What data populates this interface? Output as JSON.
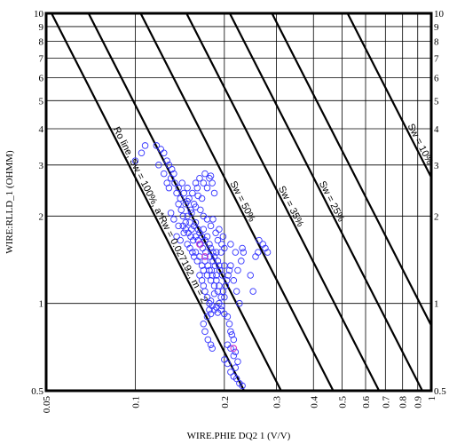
{
  "chart_data": {
    "type": "scatter",
    "xlabel": "WIRE.PHIE DQ2 1 (V/V)",
    "ylabel": "WIRE:RLLD_1 (OHMM)",
    "x_scale": "log",
    "y_scale": "log",
    "xlim": [
      0.05,
      1
    ],
    "ylim": [
      0.5,
      10
    ],
    "x_ticks": [
      "0.05",
      "0.1",
      "0.2",
      "0.3",
      "0.4",
      "0.5",
      "0.6",
      "0.7",
      "0.8",
      "0.9",
      "1"
    ],
    "y_ticks": [
      "0.5",
      "1",
      "2",
      "3",
      "4",
      "5",
      "6",
      "7",
      "8",
      "9",
      "10"
    ],
    "grid": true,
    "marker": "open-circle",
    "colors": {
      "points": "#3333ff",
      "highlight_points": "#cc33cc",
      "lines": "#000000",
      "grid": "#000000"
    },
    "pickett_lines": [
      {
        "label": "Ro line, Sw = 100%, a*Rw = 0.027192, m = 2",
        "Sw": 1.0
      },
      {
        "label": "",
        "Sw": 0.75
      },
      {
        "label": "Sw = 50%",
        "Sw": 0.5
      },
      {
        "label": "Sw = 35%",
        "Sw": 0.35
      },
      {
        "label": "Sw = 25%",
        "Sw": 0.25
      },
      {
        "label": "",
        "Sw": 0.18
      },
      {
        "label": "Sw = 10%",
        "Sw": 0.1
      }
    ],
    "points": [
      [
        0.1,
        3.1
      ],
      [
        0.105,
        3.3
      ],
      [
        0.108,
        3.5
      ],
      [
        0.118,
        3.5
      ],
      [
        0.122,
        3.4
      ],
      [
        0.125,
        3.3
      ],
      [
        0.128,
        3.1
      ],
      [
        0.13,
        3.0
      ],
      [
        0.133,
        2.9
      ],
      [
        0.135,
        2.8
      ],
      [
        0.12,
        3.0
      ],
      [
        0.125,
        2.8
      ],
      [
        0.128,
        2.6
      ],
      [
        0.13,
        2.5
      ],
      [
        0.132,
        2.7
      ],
      [
        0.136,
        2.6
      ],
      [
        0.138,
        2.4
      ],
      [
        0.14,
        2.5
      ],
      [
        0.142,
        2.3
      ],
      [
        0.144,
        2.6
      ],
      [
        0.146,
        2.4
      ],
      [
        0.148,
        2.2
      ],
      [
        0.15,
        2.5
      ],
      [
        0.152,
        2.3
      ],
      [
        0.154,
        2.1
      ],
      [
        0.156,
        2.4
      ],
      [
        0.158,
        2.2
      ],
      [
        0.16,
        2.6
      ],
      [
        0.162,
        2.5
      ],
      [
        0.165,
        2.7
      ],
      [
        0.168,
        2.3
      ],
      [
        0.17,
        2.6
      ],
      [
        0.172,
        2.8
      ],
      [
        0.175,
        2.5
      ],
      [
        0.178,
        2.7
      ],
      [
        0.18,
        2.75
      ],
      [
        0.182,
        2.6
      ],
      [
        0.185,
        2.4
      ],
      [
        0.14,
        2.2
      ],
      [
        0.143,
        2.1
      ],
      [
        0.145,
        2.0
      ],
      [
        0.148,
        1.9
      ],
      [
        0.15,
        2.0
      ],
      [
        0.153,
        1.9
      ],
      [
        0.155,
        1.8
      ],
      [
        0.158,
        1.85
      ],
      [
        0.16,
        1.9
      ],
      [
        0.163,
        1.8
      ],
      [
        0.165,
        1.75
      ],
      [
        0.168,
        1.7
      ],
      [
        0.17,
        1.8
      ],
      [
        0.172,
        1.65
      ],
      [
        0.175,
        1.7
      ],
      [
        0.178,
        1.6
      ],
      [
        0.18,
        1.55
      ],
      [
        0.183,
        1.5
      ],
      [
        0.185,
        1.45
      ],
      [
        0.188,
        1.5
      ],
      [
        0.19,
        1.4
      ],
      [
        0.192,
        1.35
      ],
      [
        0.195,
        1.5
      ],
      [
        0.15,
        1.6
      ],
      [
        0.153,
        1.55
      ],
      [
        0.156,
        1.5
      ],
      [
        0.158,
        1.45
      ],
      [
        0.16,
        1.5
      ],
      [
        0.162,
        1.4
      ],
      [
        0.165,
        1.45
      ],
      [
        0.168,
        1.35
      ],
      [
        0.17,
        1.3
      ],
      [
        0.172,
        1.4
      ],
      [
        0.175,
        1.25
      ],
      [
        0.178,
        1.3
      ],
      [
        0.18,
        1.2
      ],
      [
        0.182,
        1.25
      ],
      [
        0.185,
        1.15
      ],
      [
        0.188,
        1.2
      ],
      [
        0.19,
        1.1
      ],
      [
        0.192,
        1.15
      ],
      [
        0.195,
        1.05
      ],
      [
        0.165,
        1.25
      ],
      [
        0.168,
        1.2
      ],
      [
        0.17,
        1.15
      ],
      [
        0.172,
        1.1
      ],
      [
        0.175,
        1.05
      ],
      [
        0.178,
        1.0
      ],
      [
        0.18,
        1.02
      ],
      [
        0.182,
        0.98
      ],
      [
        0.185,
        0.95
      ],
      [
        0.188,
        0.97
      ],
      [
        0.19,
        0.93
      ],
      [
        0.185,
        1.08
      ],
      [
        0.18,
        0.92
      ],
      [
        0.175,
        0.9
      ],
      [
        0.178,
        0.95
      ],
      [
        0.17,
        0.85
      ],
      [
        0.172,
        0.8
      ],
      [
        0.176,
        0.75
      ],
      [
        0.18,
        0.72
      ],
      [
        0.182,
        0.7
      ],
      [
        0.195,
        0.95
      ],
      [
        0.2,
        0.92
      ],
      [
        0.205,
        0.9
      ],
      [
        0.208,
        0.85
      ],
      [
        0.21,
        0.8
      ],
      [
        0.212,
        0.78
      ],
      [
        0.215,
        0.75
      ],
      [
        0.205,
        0.72
      ],
      [
        0.21,
        0.7
      ],
      [
        0.215,
        0.66
      ],
      [
        0.218,
        0.68
      ],
      [
        0.2,
        0.64
      ],
      [
        0.205,
        0.62
      ],
      [
        0.21,
        0.58
      ],
      [
        0.215,
        0.56
      ],
      [
        0.22,
        0.55
      ],
      [
        0.225,
        0.53
      ],
      [
        0.23,
        0.52
      ],
      [
        0.218,
        0.6
      ],
      [
        0.222,
        0.63
      ],
      [
        0.215,
        1.2
      ],
      [
        0.22,
        1.1
      ],
      [
        0.225,
        1.0
      ],
      [
        0.222,
        1.3
      ],
      [
        0.228,
        1.4
      ],
      [
        0.232,
        1.5
      ],
      [
        0.218,
        1.5
      ],
      [
        0.21,
        1.6
      ],
      [
        0.26,
        1.5
      ],
      [
        0.27,
        1.6
      ],
      [
        0.275,
        1.55
      ],
      [
        0.28,
        1.5
      ],
      [
        0.262,
        1.65
      ],
      [
        0.255,
        1.45
      ],
      [
        0.25,
        1.1
      ],
      [
        0.245,
        1.25
      ],
      [
        0.23,
        1.55
      ],
      [
        0.138,
        1.7
      ],
      [
        0.142,
        1.65
      ],
      [
        0.146,
        1.75
      ],
      [
        0.14,
        1.85
      ],
      [
        0.135,
        1.95
      ],
      [
        0.132,
        2.05
      ],
      [
        0.15,
        2.25
      ],
      [
        0.155,
        2.05
      ],
      [
        0.16,
        2.15
      ],
      [
        0.163,
        2.35
      ],
      [
        0.166,
        2.1
      ],
      [
        0.17,
        2.0
      ],
      [
        0.175,
        1.95
      ],
      [
        0.18,
        1.85
      ],
      [
        0.183,
        1.95
      ],
      [
        0.187,
        1.75
      ],
      [
        0.19,
        1.65
      ],
      [
        0.192,
        1.8
      ],
      [
        0.196,
        1.6
      ],
      [
        0.198,
        1.7
      ],
      [
        0.2,
        1.55
      ],
      [
        0.2,
        1.35
      ],
      [
        0.197,
        1.25
      ],
      [
        0.193,
        1.3
      ],
      [
        0.188,
        1.25
      ],
      [
        0.186,
        1.35
      ],
      [
        0.183,
        1.4
      ],
      [
        0.181,
        1.3
      ],
      [
        0.179,
        1.45
      ],
      [
        0.176,
        1.35
      ],
      [
        0.173,
        1.5
      ],
      [
        0.169,
        1.55
      ],
      [
        0.166,
        1.6
      ],
      [
        0.163,
        1.65
      ],
      [
        0.16,
        1.7
      ],
      [
        0.157,
        1.65
      ],
      [
        0.154,
        1.7
      ],
      [
        0.151,
        1.75
      ],
      [
        0.148,
        1.8
      ],
      [
        0.145,
        1.85
      ],
      [
        0.192,
        1.0
      ],
      [
        0.196,
        0.98
      ],
      [
        0.198,
        1.1
      ],
      [
        0.2,
        1.05
      ],
      [
        0.202,
        1.15
      ],
      [
        0.204,
        1.2
      ],
      [
        0.206,
        1.25
      ],
      [
        0.208,
        1.3
      ],
      [
        0.21,
        1.35
      ]
    ],
    "highlight_points": [
      [
        0.165,
        1.6
      ],
      [
        0.172,
        1.45
      ],
      [
        0.215,
        0.7
      ]
    ]
  }
}
